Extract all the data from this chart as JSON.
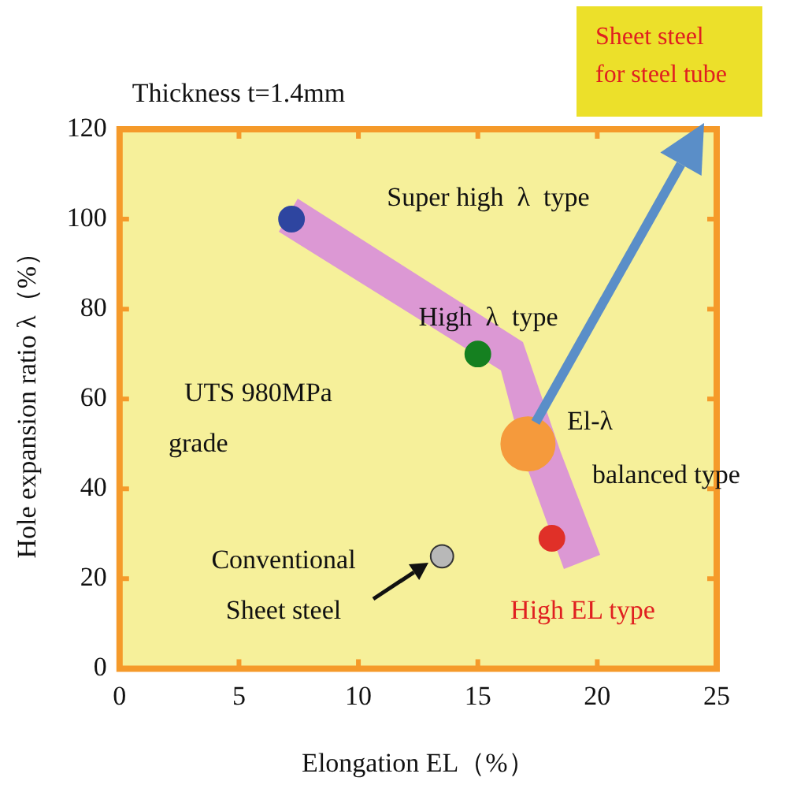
{
  "chart_data": {
    "type": "bubble",
    "title": "Thickness t=1.4mm",
    "xlabel": "Elongation EL（%）",
    "ylabel": "Hole expansion ratio λ（%）",
    "x": [
      7.2,
      15.0,
      17.1,
      18.1,
      13.5
    ],
    "values": [
      100,
      70,
      50,
      29,
      25
    ],
    "sizes": [
      0.22,
      0.22,
      1,
      0.22,
      0.18
    ],
    "colors": [
      "#2e45a0",
      "#158020",
      "#f59a3c",
      "#e03028",
      "#b8b8b8"
    ],
    "xlim": [
      0,
      25
    ],
    "xticks": [
      0,
      5,
      10,
      15,
      20,
      25
    ],
    "ylim": [
      0,
      120
    ],
    "yticks": [
      0,
      20,
      40,
      60,
      80,
      100,
      120
    ],
    "grid": false,
    "legend": false,
    "annotations": [
      "Super high  λ  type",
      "High  λ  type",
      "El-λ\nbalanced type",
      "Conventional\nSheet steel",
      "High EL type",
      "UTS 980MPa\ngrade",
      "Sheet steel\nfor steel tube"
    ]
  }
}
